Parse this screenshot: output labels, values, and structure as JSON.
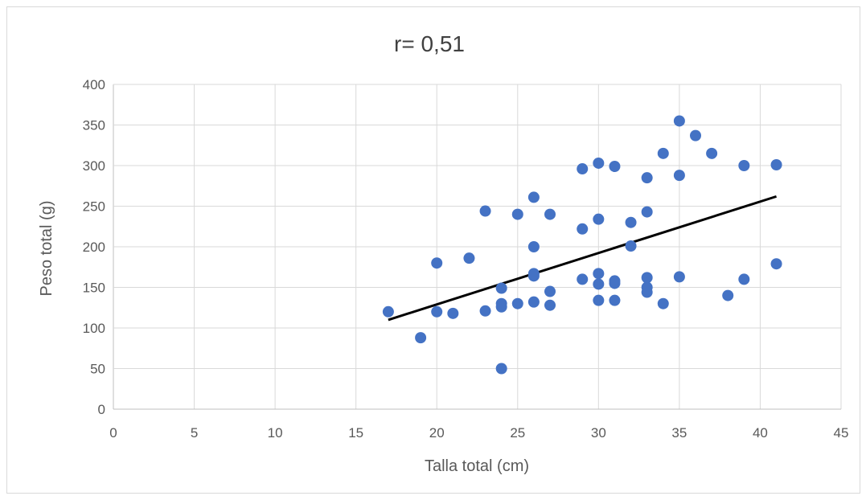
{
  "chart_data": {
    "type": "scatter",
    "title": "r= 0,51",
    "xlabel": "Talla total (cm)",
    "ylabel": "Peso total (g)",
    "xlim": [
      0,
      45
    ],
    "ylim": [
      0,
      400
    ],
    "xticks": [
      0,
      5,
      10,
      15,
      20,
      25,
      30,
      35,
      40,
      45
    ],
    "yticks": [
      0,
      50,
      100,
      150,
      200,
      250,
      300,
      350,
      400
    ],
    "grid": true,
    "legend": "none",
    "marker_color": "#4472c4",
    "trendline_color": "#000000",
    "series": [
      {
        "points": [
          [
            17,
            120
          ],
          [
            19,
            88
          ],
          [
            20,
            180
          ],
          [
            20,
            120
          ],
          [
            21,
            118
          ],
          [
            22,
            186
          ],
          [
            23,
            244
          ],
          [
            23,
            121
          ],
          [
            24,
            149
          ],
          [
            24,
            130
          ],
          [
            24,
            126
          ],
          [
            24,
            50
          ],
          [
            25,
            240
          ],
          [
            25,
            130
          ],
          [
            26,
            261
          ],
          [
            26,
            200
          ],
          [
            26,
            167
          ],
          [
            26,
            164
          ],
          [
            26,
            132
          ],
          [
            27,
            240
          ],
          [
            27,
            145
          ],
          [
            27,
            128
          ],
          [
            29,
            296
          ],
          [
            29,
            222
          ],
          [
            29,
            160
          ],
          [
            30,
            303
          ],
          [
            30,
            234
          ],
          [
            30,
            167
          ],
          [
            30,
            154
          ],
          [
            30,
            134
          ],
          [
            31,
            299
          ],
          [
            31,
            158
          ],
          [
            31,
            155
          ],
          [
            31,
            134
          ],
          [
            32,
            230
          ],
          [
            32,
            201
          ],
          [
            33,
            285
          ],
          [
            33,
            243
          ],
          [
            33,
            162
          ],
          [
            33,
            150
          ],
          [
            33,
            144
          ],
          [
            34,
            315
          ],
          [
            34,
            130
          ],
          [
            35,
            355
          ],
          [
            35,
            288
          ],
          [
            35,
            163
          ],
          [
            36,
            337
          ],
          [
            37,
            315
          ],
          [
            38,
            140
          ],
          [
            39,
            300
          ],
          [
            39,
            160
          ],
          [
            41,
            301
          ],
          [
            41,
            179
          ]
        ]
      }
    ],
    "trendline": {
      "x": [
        17,
        41
      ],
      "y": [
        110,
        262
      ]
    }
  }
}
